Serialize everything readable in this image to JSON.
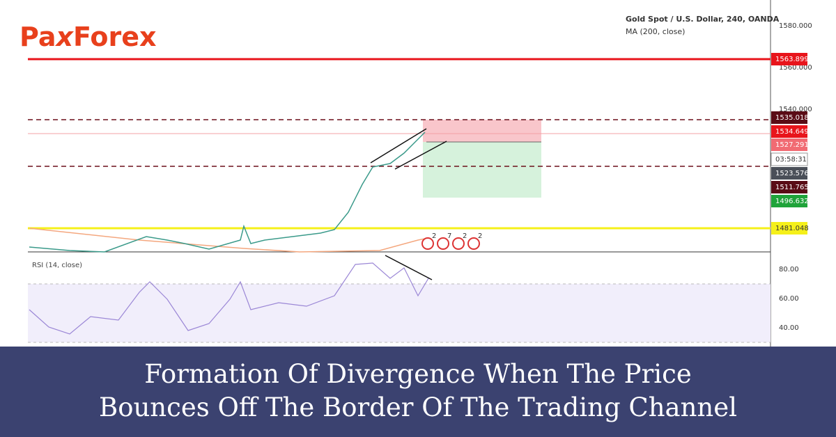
{
  "header": {
    "logo_left": "Pa",
    "logo_mark": "x",
    "logo_right": "Forex",
    "instrument": "Gold Spot / U.S. Dollar, 240, OANDA",
    "indicator": "MA (200, close)"
  },
  "price_axis": {
    "ticks": [
      "1580.000",
      "1560.000",
      "1540.000"
    ]
  },
  "price_labels": [
    "1563.899",
    "1535.018",
    "1534.649",
    "1527.291",
    "03:58:31",
    "1523.576",
    "1511.765",
    "1496.632",
    "1481.048"
  ],
  "event_markers": [
    "2",
    "7",
    "2",
    "2"
  ],
  "rsi": {
    "label": "RSI (14, close)",
    "ticks": [
      "80.00",
      "60.00",
      "40.00"
    ]
  },
  "caption": {
    "line1": "Formation Of Divergence When The Price",
    "line2": "Bounces Off The Border Of The Trading Channel"
  }
}
